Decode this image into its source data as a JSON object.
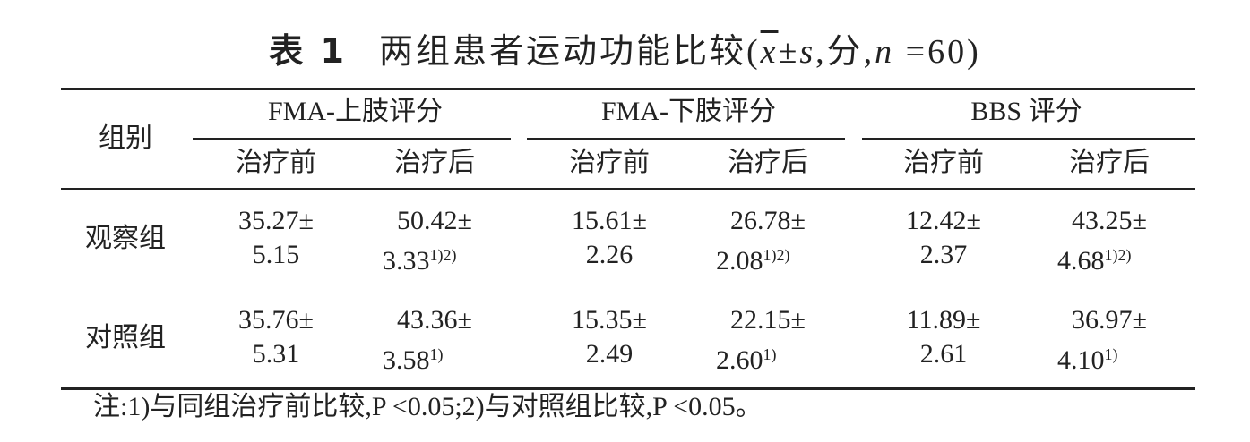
{
  "title": {
    "label": "表 1",
    "parts": [
      "两组患者运动功能比较(",
      "x",
      "±",
      "s",
      ",分,",
      "n",
      " =60)"
    ]
  },
  "table": {
    "corner": "组别",
    "groups": [
      "FMA-上肢评分",
      "FMA-下肢评分",
      "BBS 评分"
    ],
    "subheaders": [
      "治疗前",
      "治疗后",
      "治疗前",
      "治疗后",
      "治疗前",
      "治疗后"
    ],
    "rows": [
      {
        "label": "观察组",
        "cells": [
          {
            "line1": "35.27±",
            "line2": "5.15"
          },
          {
            "line1": "50.42±",
            "line2": "3.33",
            "note": "1)2)"
          },
          {
            "line1": "15.61±",
            "line2": "2.26"
          },
          {
            "line1": "26.78±",
            "line2": "2.08",
            "note": "1)2)"
          },
          {
            "line1": "12.42±",
            "line2": "2.37"
          },
          {
            "line1": "43.25±",
            "line2": "4.68",
            "note": "1)2)"
          }
        ]
      },
      {
        "label": "对照组",
        "cells": [
          {
            "line1": "35.76±",
            "line2": "5.31"
          },
          {
            "line1": "43.36±",
            "line2": "3.58",
            "note": "1)"
          },
          {
            "line1": "15.35±",
            "line2": "2.49"
          },
          {
            "line1": "22.15±",
            "line2": "2.60",
            "note": "1)"
          },
          {
            "line1": "11.89±",
            "line2": "2.61"
          },
          {
            "line1": "36.97±",
            "line2": "4.10",
            "note": "1)"
          }
        ]
      }
    ]
  },
  "footnote": "注:1)与同组治疗前比较,P <0.05;2)与对照组比较,P <0.05。"
}
